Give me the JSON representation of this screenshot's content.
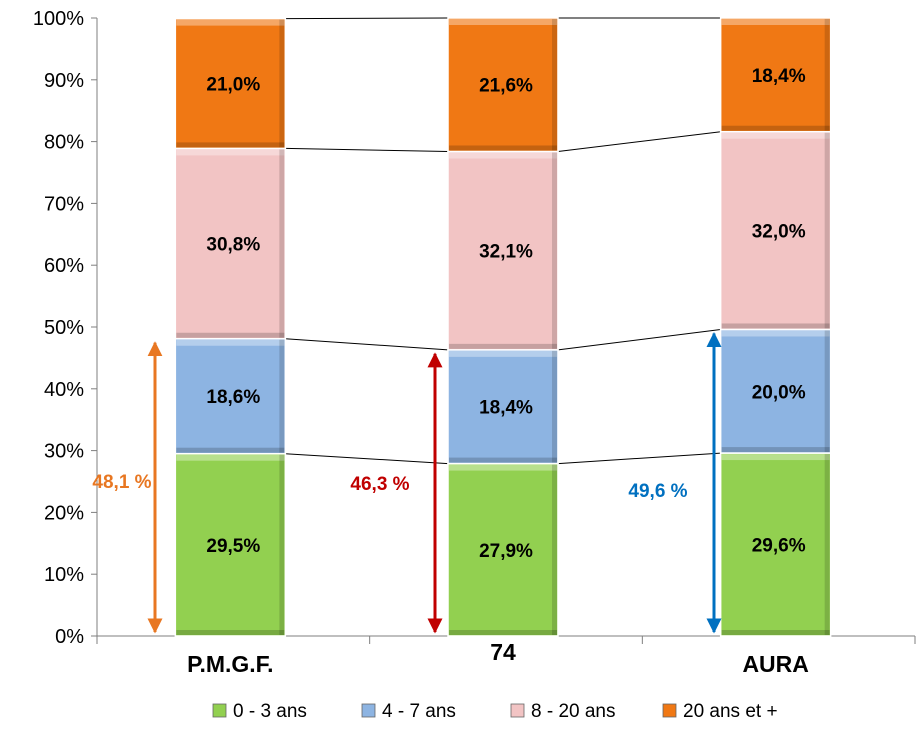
{
  "chart_data": {
    "type": "bar",
    "stacked": true,
    "percent": true,
    "categories": [
      "P.M.G.F.",
      "74",
      "AURA"
    ],
    "series": [
      {
        "name": "0 - 3 ans",
        "values": [
          29.5,
          27.9,
          29.6
        ],
        "labels": [
          "29,5%",
          "27,9%",
          "29,6%"
        ],
        "color": "#92D050"
      },
      {
        "name": "4 - 7 ans",
        "values": [
          18.6,
          18.4,
          20.0
        ],
        "labels": [
          "18,6%",
          "18,4%",
          "20,0%"
        ],
        "color": "#8DB4E2"
      },
      {
        "name": "8 - 20 ans",
        "values": [
          30.8,
          32.1,
          32.0
        ],
        "labels": [
          "30,8%",
          "32,1%",
          "32,0%"
        ],
        "color": "#F2C4C4"
      },
      {
        "name": "20 ans et +",
        "values": [
          21.0,
          21.6,
          18.4
        ],
        "labels": [
          "21,0%",
          "21,6%",
          "18,4%"
        ],
        "color": "#F07814"
      }
    ],
    "y_ticks": [
      "0%",
      "10%",
      "20%",
      "30%",
      "40%",
      "50%",
      "60%",
      "70%",
      "80%",
      "90%",
      "100%"
    ],
    "ylim": [
      0,
      100
    ],
    "legend_position": "bottom",
    "brackets": [
      {
        "label": "48,1 %",
        "value": 48.1,
        "color": "#E87722"
      },
      {
        "label": "46,3  %",
        "value": 46.3,
        "color": "#C00000"
      },
      {
        "label": "49,6  %",
        "value": 49.6,
        "color": "#0070C0"
      }
    ]
  }
}
